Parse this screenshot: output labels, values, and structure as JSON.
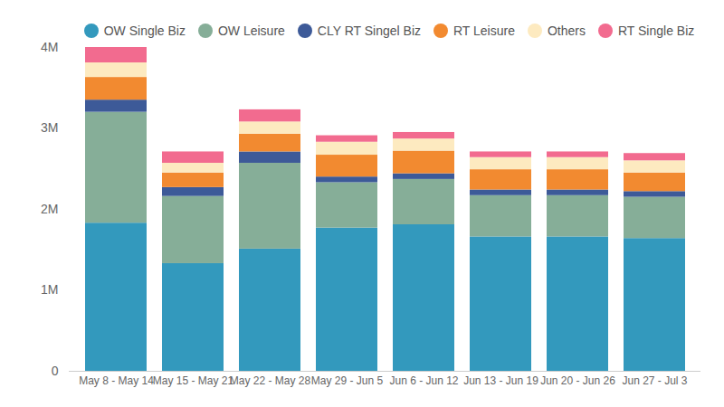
{
  "chart_data": {
    "type": "bar",
    "stacked": true,
    "grid": false,
    "legend": "top",
    "categories": [
      "May 8 - May 14",
      "May 15 - May 21",
      "May 22 - May 28",
      "May 29 - Jun 5",
      "Jun 6 - Jun 12",
      "Jun 13 - Jun 19",
      "Jun 20 - Jun 26",
      "Jun 27 - Jul 3"
    ],
    "series": [
      {
        "name": "OW Single Biz",
        "color": "#3399bd",
        "values": [
          1830000,
          1330000,
          1510000,
          1770000,
          1810000,
          1660000,
          1660000,
          1640000
        ]
      },
      {
        "name": "OW Leisure",
        "color": "#86ae98",
        "values": [
          1370000,
          830000,
          1060000,
          560000,
          560000,
          510000,
          510000,
          510000
        ]
      },
      {
        "name": "CLY RT Singel Biz",
        "color": "#3d5a98",
        "values": [
          150000,
          110000,
          140000,
          70000,
          70000,
          70000,
          70000,
          70000
        ]
      },
      {
        "name": "RT Leisure",
        "color": "#f28a30",
        "values": [
          280000,
          180000,
          220000,
          270000,
          280000,
          250000,
          250000,
          230000
        ]
      },
      {
        "name": "Others",
        "color": "#fdeac0",
        "values": [
          180000,
          120000,
          150000,
          160000,
          150000,
          150000,
          150000,
          150000
        ]
      },
      {
        "name": "RT Single Biz",
        "color": "#f26b8f",
        "values": [
          190000,
          140000,
          150000,
          80000,
          80000,
          70000,
          70000,
          90000
        ]
      }
    ],
    "ylim": [
      0,
      4000000
    ],
    "yticks": [
      0,
      {
        "value": 1000000,
        "label": "1M"
      },
      {
        "value": 2000000,
        "label": "2M"
      },
      {
        "value": 3000000,
        "label": "3M"
      },
      {
        "value": 4000000,
        "label": "4M"
      }
    ]
  }
}
